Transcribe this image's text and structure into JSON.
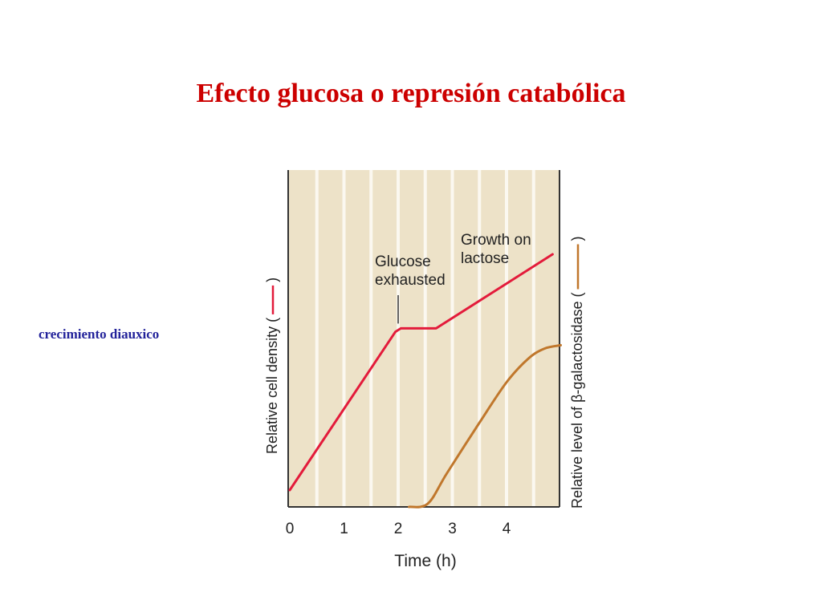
{
  "slide": {
    "title": "Efecto glucosa o represión catabólica",
    "caption": "crecimiento diauxico"
  },
  "colors": {
    "title": "#cc0000",
    "caption": "#22229a",
    "plot_background": "#ede2c8",
    "gridline": "#fbf8f0",
    "axis": "#333333",
    "cell_density": "#e31b3b",
    "beta_galactosidase": "#c0772c"
  },
  "chart_data": {
    "type": "line",
    "xlabel": "Time (h)",
    "ylabel_left": "Relative cell density (",
    "ylabel_left_close": ")",
    "ylabel_right": "Relative level of β-galactosidase (",
    "ylabel_right_close": ")",
    "xlim": [
      0,
      5
    ],
    "ylim": [
      0,
      1
    ],
    "x_ticks": [
      0,
      1,
      2,
      3,
      4
    ],
    "x_tick_labels": [
      "0",
      "1",
      "2",
      "3",
      "4"
    ],
    "grid": "vertical",
    "series": [
      {
        "key": "cell_density",
        "x": [
          0,
          1.95,
          2.05,
          2.7,
          4.85
        ],
        "y": [
          0.05,
          0.52,
          0.53,
          0.53,
          0.75
        ]
      },
      {
        "key": "beta_galactosidase",
        "x": [
          2.2,
          2.55,
          2.9,
          3.5,
          4.0,
          4.4,
          4.7,
          5.0
        ],
        "y": [
          0.0,
          0.01,
          0.1,
          0.25,
          0.37,
          0.44,
          0.47,
          0.48
        ]
      }
    ],
    "annotations": [
      {
        "text": [
          "Glucose",
          "exhausted"
        ],
        "x": 2.0,
        "y": 0.53
      },
      {
        "text": [
          "Growth on",
          "lactose"
        ],
        "x": 3.4,
        "y": 0.75
      }
    ]
  }
}
